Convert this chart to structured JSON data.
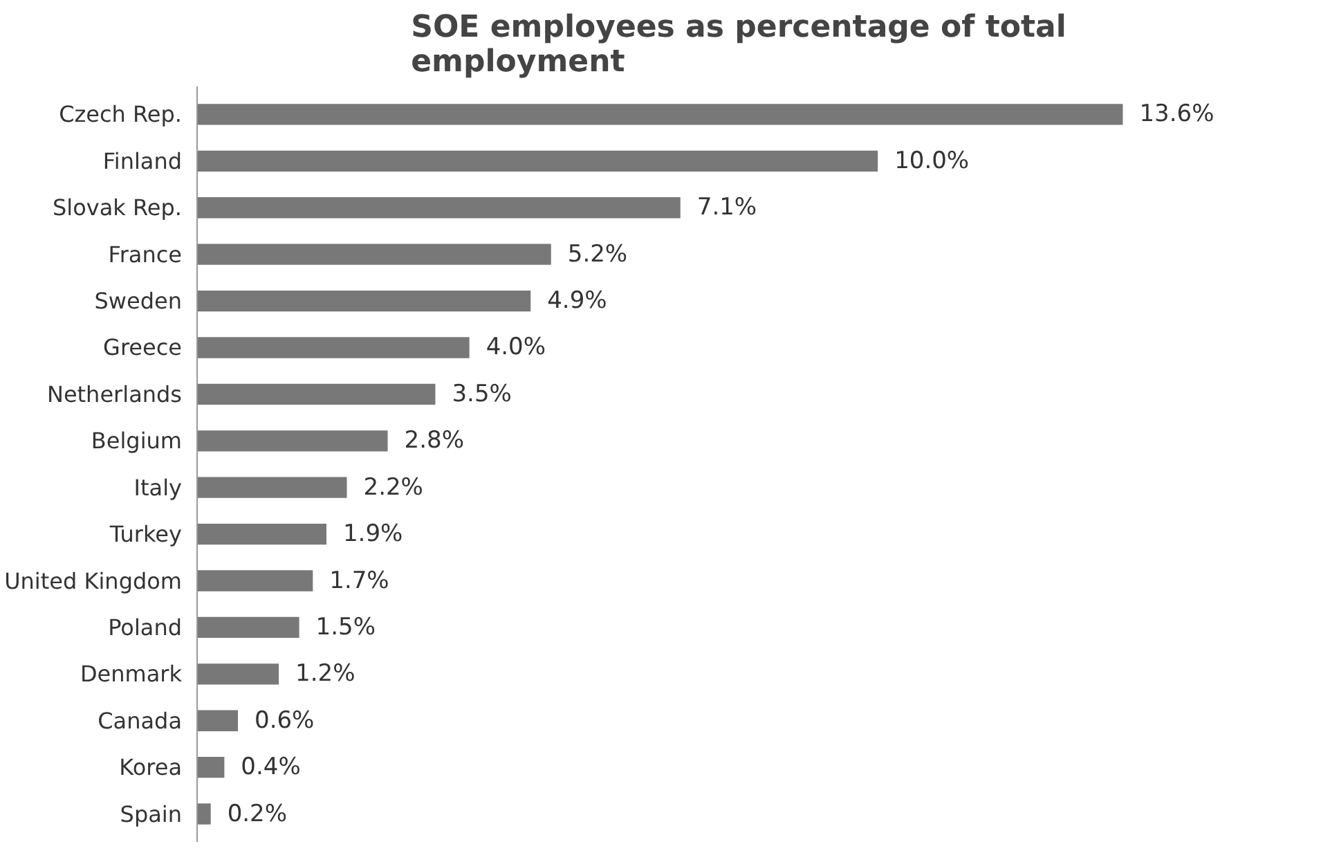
{
  "chart_data": {
    "type": "bar",
    "orientation": "horizontal",
    "title": "SOE employees as percentage of total employment",
    "categories": [
      "Czech Rep.",
      "Finland",
      "Slovak Rep.",
      "France",
      "Sweden",
      "Greece",
      "Netherlands",
      "Belgium",
      "Italy",
      "Turkey",
      "United Kingdom",
      "Poland",
      "Denmark",
      "Canada",
      "Korea",
      "Spain"
    ],
    "values": [
      13.6,
      10.0,
      7.1,
      5.2,
      4.9,
      4.0,
      3.5,
      2.8,
      2.2,
      1.9,
      1.7,
      1.5,
      1.2,
      0.6,
      0.4,
      0.2
    ],
    "value_labels": [
      "13.6%",
      "10.0%",
      "7.1%",
      "5.2%",
      "4.9%",
      "4.0%",
      "3.5%",
      "2.8%",
      "2.2%",
      "1.9%",
      "1.7%",
      "1.5%",
      "1.2%",
      "0.6%",
      "0.4%",
      "0.2%"
    ],
    "color": "#787878",
    "grid": false
  }
}
